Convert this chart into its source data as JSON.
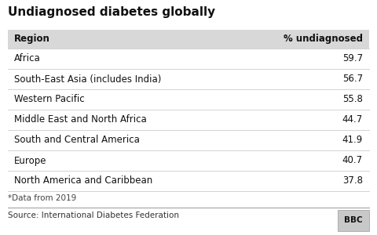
{
  "title": "Undiagnosed diabetes globally",
  "col_region": "Region",
  "col_value": "% undiagnosed",
  "rows": [
    [
      "Africa",
      "59.7"
    ],
    [
      "South-East Asia (includes India)",
      "56.7"
    ],
    [
      "Western Pacific",
      "55.8"
    ],
    [
      "Middle East and North Africa",
      "44.7"
    ],
    [
      "South and Central America",
      "41.9"
    ],
    [
      "Europe",
      "40.7"
    ],
    [
      "North America and Caribbean",
      "37.8"
    ]
  ],
  "footnote": "*Data from 2019",
  "source": "Source: International Diabetes Federation",
  "bbc_label": "BBC",
  "bg_color": "#ffffff",
  "header_bg": "#d8d8d8",
  "row_line_color": "#cccccc",
  "source_line_color": "#999999",
  "title_fontsize": 11,
  "header_fontsize": 8.5,
  "row_fontsize": 8.5,
  "footnote_fontsize": 7.5,
  "source_fontsize": 7.5
}
